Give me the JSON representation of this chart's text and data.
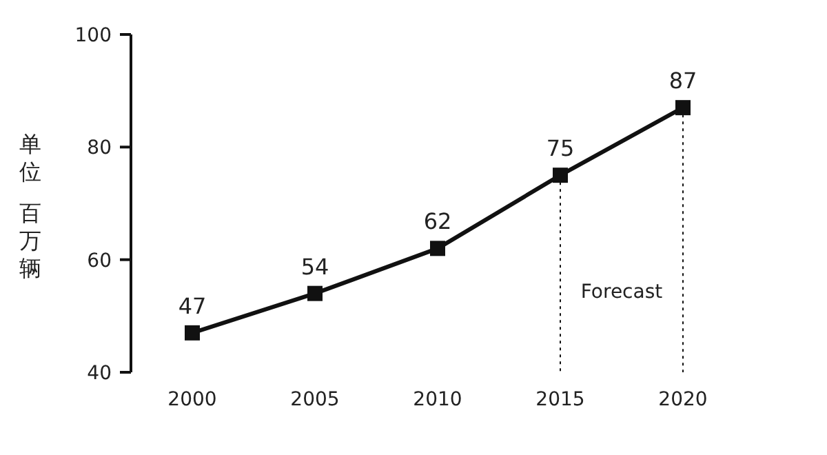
{
  "chart_data": {
    "type": "line",
    "ylabel": "单位百万辆",
    "categories": [
      "2000",
      "2005",
      "2010",
      "2015",
      "2020"
    ],
    "series": [
      {
        "color": "#111111",
        "values": [
          47,
          54,
          62,
          75,
          87
        ]
      }
    ],
    "ylim": [
      40,
      100
    ],
    "yticks": [
      40,
      60,
      80,
      100
    ],
    "marker": "square",
    "line_style": "solid",
    "data_labels": true,
    "ref_lines": [
      {
        "axis": "x",
        "value": "2015",
        "line_style": "dotted",
        "color": "#111111"
      },
      {
        "axis": "x",
        "value": "2020",
        "line_style": "dotted",
        "color": "#111111"
      }
    ],
    "annotations": [
      "Forecast"
    ]
  }
}
